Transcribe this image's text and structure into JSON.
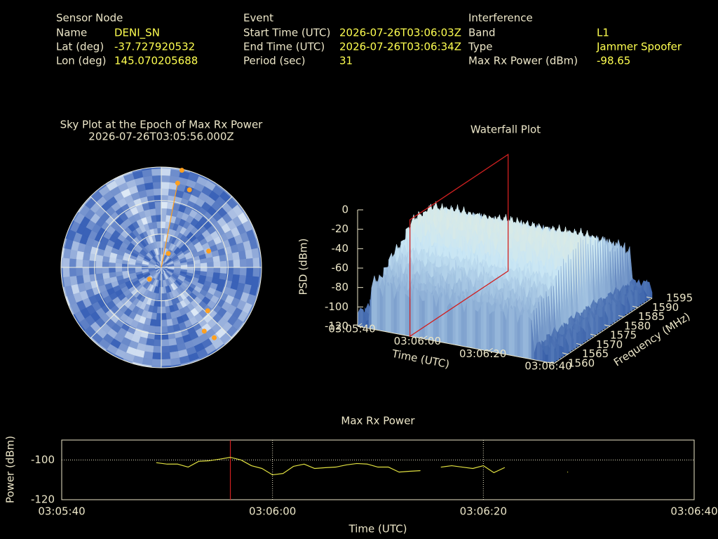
{
  "header": {
    "sensor": {
      "title": "Sensor Node",
      "rows": [
        [
          "Name",
          "DENI_SN"
        ],
        [
          "Lat (deg)",
          "-37.727920532"
        ],
        [
          "Lon (deg)",
          "145.070205688"
        ]
      ]
    },
    "event": {
      "title": "Event",
      "rows": [
        [
          "Start Time (UTC)",
          "2026-07-26T03:06:03Z"
        ],
        [
          "End Time (UTC)",
          "2026-07-26T03:06:34Z"
        ],
        [
          "Period (sec)",
          "31"
        ]
      ]
    },
    "interference": {
      "title": "Interference",
      "rows": [
        [
          "Band",
          "L1"
        ],
        [
          "Type",
          "Jammer  Spoofer"
        ],
        [
          "Max Rx Power (dBm)",
          "-98.65"
        ]
      ]
    }
  },
  "chart_data": [
    {
      "type": "polar-scatter",
      "title": "Sky Plot at the Epoch of Max Rx Power",
      "subtitle": "2026-07-26T03:05:56.000Z",
      "azimuth": [
        27,
        225,
        71,
        133,
        11,
        12,
        20,
        146,
        143
      ],
      "elevation": [
        76,
        75,
        45,
        33,
        13,
        1,
        16,
        21,
        11
      ],
      "color": "#ffa020",
      "rings": [
        0,
        30,
        60
      ]
    },
    {
      "type": "waterfall",
      "title": "Waterfall Plot",
      "xlabel": "Time (UTC)",
      "ylabel": "Frequency (MHz)",
      "zlabel": "PSD (dBm)",
      "xlim": [
        "03:05:40",
        "03:06:40"
      ],
      "xticks": [
        "03:05:40",
        "03:06:00",
        "03:06:20",
        "03:06:40"
      ],
      "ylim": [
        1560,
        1595
      ],
      "yticks": [
        1560,
        1565,
        1570,
        1575,
        1580,
        1585,
        1590,
        1595
      ],
      "zlim": [
        -120,
        0
      ],
      "zticks": [
        -120,
        -100,
        -80,
        -60,
        -40,
        -20,
        0
      ],
      "marker": "03:05:56",
      "marker_color": "#d02020"
    },
    {
      "type": "line",
      "title": "Max Rx Power",
      "xlabel": "Time (UTC)",
      "ylabel": "Power (dBm)",
      "xlim": [
        "03:05:40",
        "03:06:40"
      ],
      "xticks": [
        "03:05:40",
        "03:06:00",
        "03:06:20",
        "03:06:40"
      ],
      "ylim": [
        -120,
        -90
      ],
      "yticks": [
        -120,
        -100
      ],
      "grid": true,
      "color": "#e0e040",
      "marker": "03:05:56",
      "marker_color": "#d02020",
      "x": [
        "03:05:49",
        "03:05:50",
        "03:05:51",
        "03:05:52",
        "03:05:53",
        "03:05:54",
        "03:05:55",
        "03:05:56",
        "03:05:57",
        "03:05:58",
        "03:05:59",
        "03:06:00",
        "03:06:01",
        "03:06:02",
        "03:06:03",
        "03:06:04",
        "03:06:05",
        "03:06:06",
        "03:06:07",
        "03:06:08",
        "03:06:09",
        "03:06:10",
        "03:06:11",
        "03:06:12",
        "03:06:13",
        "03:06:14",
        "03:06:15",
        "03:06:16",
        "03:06:17",
        "03:06:18",
        "03:06:19",
        "03:06:20",
        "03:06:21",
        "03:06:22",
        "03:06:23",
        "03:06:24",
        "03:06:25",
        "03:06:26",
        "03:06:27",
        "03:06:28"
      ],
      "values": [
        -101.4,
        -102.1,
        -102.1,
        -103.6,
        -100.7,
        -100.4,
        -99.6,
        -98.7,
        -100,
        -102.9,
        -104.3,
        -107.5,
        -106.8,
        -103.2,
        -102.1,
        -104.3,
        -103.9,
        -103.6,
        -102.5,
        -101.8,
        -102.1,
        -103.6,
        -103.6,
        -106.1,
        -105.7,
        -105.4,
        null,
        -103.6,
        -102.9,
        -103.6,
        -104.3,
        -102.9,
        -106.4,
        -103.9,
        null,
        null,
        null,
        null,
        null,
        -106.1
      ]
    }
  ]
}
